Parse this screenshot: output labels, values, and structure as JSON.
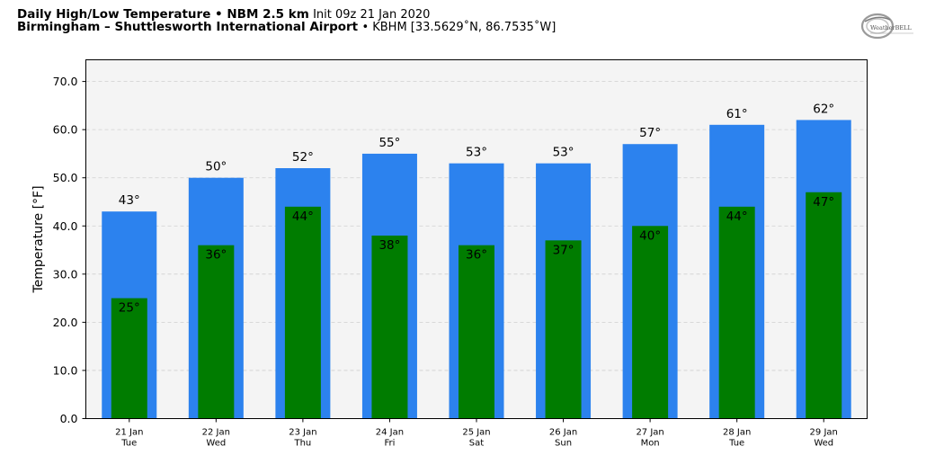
{
  "header": {
    "title_bold": "Daily High/Low Temperature • NBM 2.5 km",
    "title_init": "Init 09z 21 Jan 2020",
    "station_bold": "Birmingham – Shuttlesworth International Airport",
    "station_info": "• KBHM [33.5629˚N, 86.7535˚W]",
    "logo_text": "WeatherBELL"
  },
  "colors": {
    "high": "#2c82ee",
    "low": "#007c00",
    "plot_bg": "#f4f4f4"
  },
  "chart_data": {
    "type": "bar",
    "ylabel": "Temperature [°F]",
    "ylim": [
      0,
      74.5
    ],
    "yticks": [
      "0.0",
      "10.0",
      "20.0",
      "30.0",
      "40.0",
      "50.0",
      "60.0",
      "70.0"
    ],
    "ytick_values": [
      0,
      10,
      20,
      30,
      40,
      50,
      60,
      70
    ],
    "grid": true,
    "dates": [
      "21 Jan",
      "22 Jan",
      "23 Jan",
      "24 Jan",
      "25 Jan",
      "26 Jan",
      "27 Jan",
      "28 Jan",
      "29 Jan"
    ],
    "days": [
      "Tue",
      "Wed",
      "Thu",
      "Fri",
      "Sat",
      "Sun",
      "Mon",
      "Tue",
      "Wed"
    ],
    "series": [
      {
        "key": "high",
        "values": [
          43,
          50,
          52,
          55,
          53,
          53,
          57,
          61,
          62
        ]
      },
      {
        "key": "low",
        "values": [
          25,
          36,
          44,
          38,
          36,
          37,
          40,
          44,
          47
        ]
      }
    ]
  }
}
